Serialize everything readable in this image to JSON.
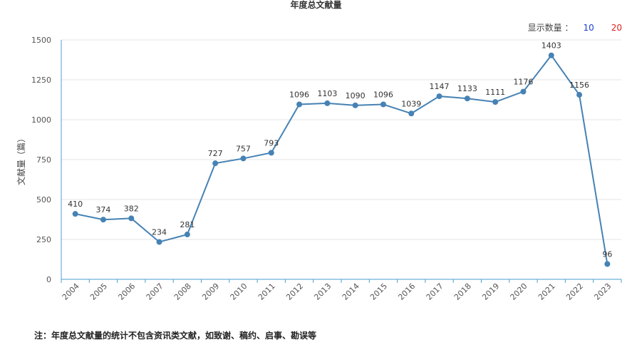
{
  "header": {
    "count_label": "显示数量 ：",
    "count_option_10": "10",
    "count_option_20": "20"
  },
  "footnote": "注：年度总文献量的统计不包含资讯类文献，如致谢、稿约、启事、勘误等",
  "colors": {
    "line": "#4682b4",
    "axis": "#4a9fd0",
    "option_10": "#1a3fd6",
    "option_20": "#e02020"
  },
  "chart_data": {
    "type": "line",
    "title": "年度总文献量",
    "xlabel": "",
    "ylabel": "文献量（篇）",
    "ylim": [
      0,
      1500
    ],
    "yticks": [
      "0",
      "250",
      "500",
      "750",
      "1000",
      "1250",
      "1500"
    ],
    "grid": true,
    "categories": [
      "2004",
      "2005",
      "2006",
      "2007",
      "2008",
      "2009",
      "2010",
      "2011",
      "2012",
      "2013",
      "2014",
      "2015",
      "2016",
      "2017",
      "2018",
      "2019",
      "2020",
      "2021",
      "2022",
      "2023"
    ],
    "values": [
      410,
      374,
      382,
      234,
      281,
      727,
      757,
      793,
      1096,
      1103,
      1090,
      1096,
      1039,
      1147,
      1133,
      1111,
      1176,
      1403,
      1156,
      96
    ]
  }
}
